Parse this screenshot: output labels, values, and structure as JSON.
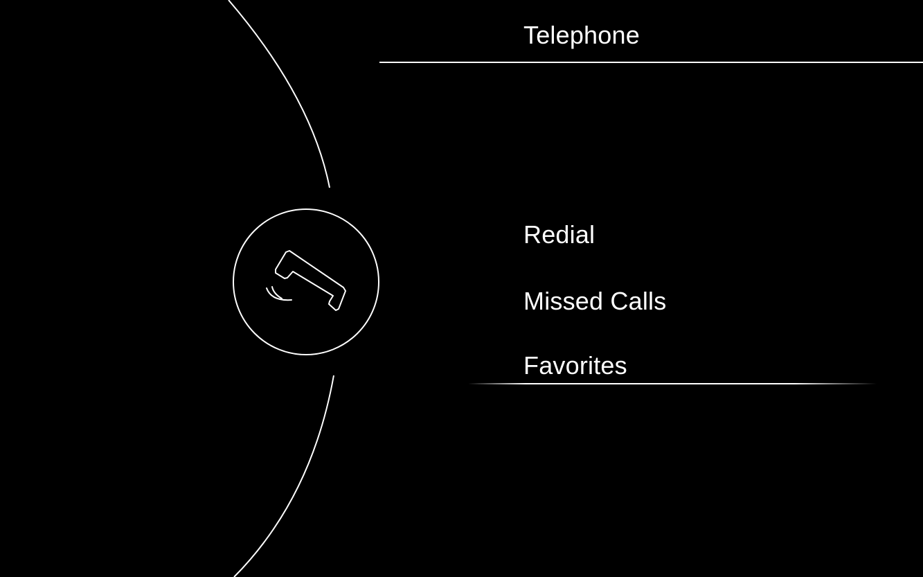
{
  "header": {
    "title": "Telephone"
  },
  "menu": {
    "items": [
      {
        "label": "Redial"
      },
      {
        "label": "Missed Calls"
      },
      {
        "label": "Favorites"
      }
    ],
    "selected_index": 2
  },
  "phone_button": {
    "icon": "phone-handset-icon"
  },
  "colors": {
    "background": "#000000",
    "foreground": "#ffffff"
  }
}
